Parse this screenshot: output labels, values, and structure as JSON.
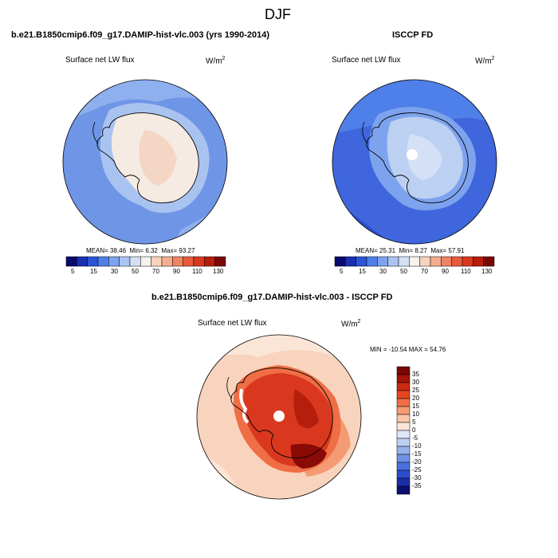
{
  "figure_title": "DJF",
  "panels": [
    {
      "title": "b.e21.B1850cmip6.f09_g17.DAMIP-hist-vlc.003 (yrs 1990-2014)",
      "variable": "Surface net LW flux",
      "units_base": "W/m",
      "units_exp": "2",
      "stats": {
        "mean_label": "MEAN=",
        "mean": "38.46",
        "min_label": "Min=",
        "min": "6.32",
        "max_label": "Max=",
        "max": "93.27"
      }
    },
    {
      "title": "ISCCP FD",
      "variable": "Surface net LW flux",
      "units_base": "W/m",
      "units_exp": "2",
      "stats": {
        "mean_label": "MEAN=",
        "mean": "25.31",
        "min_label": "Min=",
        "min": "8.27",
        "max_label": "Max=",
        "max": "57.91"
      }
    },
    {
      "title": "b.e21.B1850cmip6.f09_g17.DAMIP-hist-vlc.003 - ISCCP FD",
      "variable": "Surface net LW flux",
      "units_base": "W/m",
      "units_exp": "2",
      "stats_text": "MIN = -10.54  MAX = 54.76"
    }
  ],
  "abs_colorbar": {
    "labels": [
      "5",
      "15",
      "30",
      "50",
      "70",
      "90",
      "110",
      "130"
    ],
    "colors": [
      "#0a0a6e",
      "#1a2fb0",
      "#2a55d8",
      "#4f7fe8",
      "#7ea3ee",
      "#aac4f2",
      "#d3e0f5",
      "#f7f3ec",
      "#f8d3bd",
      "#f4ad90",
      "#ef8464",
      "#e85a3e",
      "#d9381f",
      "#b51d0c",
      "#7a0606"
    ]
  },
  "diff_colorbar": {
    "labels": [
      "35",
      "30",
      "25",
      "20",
      "15",
      "10",
      "5",
      "0",
      "-5",
      "-10",
      "-15",
      "-20",
      "-25",
      "-30",
      "-35"
    ],
    "colors": [
      "#7a0606",
      "#a51208",
      "#cc2a10",
      "#e4481f",
      "#ef6e45",
      "#f49b74",
      "#f8c6a8",
      "#fbe5d6",
      "#dde6f6",
      "#bcd0f2",
      "#94b2ec",
      "#6e93e6",
      "#4a70dd",
      "#2c4ccd",
      "#1a2ea8",
      "#0b0f70"
    ]
  },
  "map_colors": {
    "ocean_light": "#8fb0ee",
    "ocean_mid": "#6f95e6",
    "ocean_dark": "#3f66dc",
    "ice_light": "#f6ebe2",
    "ice_pink": "#f4d6c4",
    "diff_ocean": "#f8d3bd",
    "diff_ice": "#d9381f",
    "diff_dark": "#8a0a06"
  }
}
